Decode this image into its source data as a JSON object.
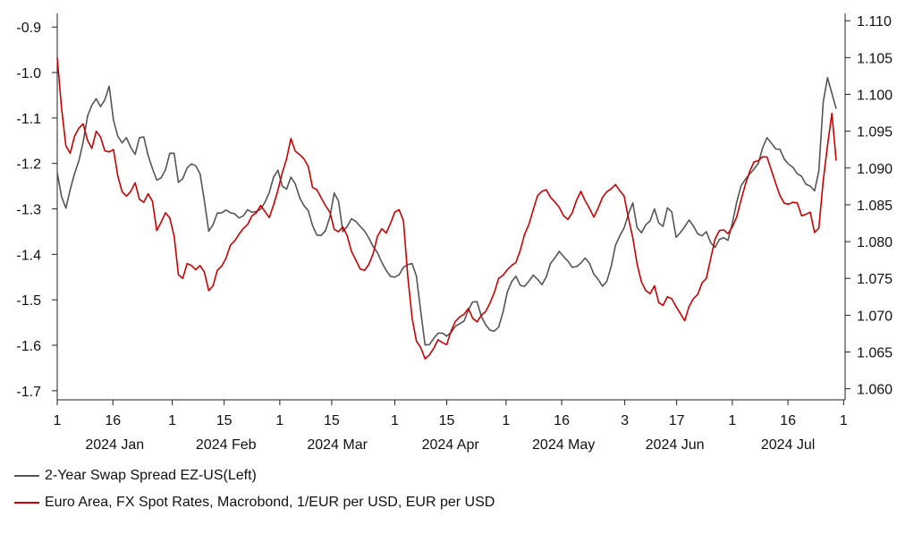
{
  "chart_data": {
    "type": "line",
    "title": "",
    "xlabel": "",
    "x_range": [
      0,
      210
    ],
    "x_ticks": [
      {
        "label": "1",
        "x": 0
      },
      {
        "label": "16",
        "x": 15
      },
      {
        "label": "1",
        "x": 31
      },
      {
        "label": "15",
        "x": 45
      },
      {
        "label": "1",
        "x": 60
      },
      {
        "label": "15",
        "x": 74
      },
      {
        "label": "1",
        "x": 91
      },
      {
        "label": "15",
        "x": 105
      },
      {
        "label": "1",
        "x": 121
      },
      {
        "label": "16",
        "x": 136
      },
      {
        "label": "3",
        "x": 153
      },
      {
        "label": "17",
        "x": 167
      },
      {
        "label": "1",
        "x": 182
      },
      {
        "label": "16",
        "x": 197
      },
      {
        "label": "1",
        "x": 212
      }
    ],
    "month_labels": [
      {
        "label": "2024 Jan",
        "x": 15.5
      },
      {
        "label": "2024 Feb",
        "x": 45.5
      },
      {
        "label": "2024 Mar",
        "x": 75.5
      },
      {
        "label": "2024 Apr",
        "x": 106
      },
      {
        "label": "2024 May",
        "x": 136.5
      },
      {
        "label": "2024 Jun",
        "x": 166.5
      },
      {
        "label": "2024 Jul",
        "x": 197
      }
    ],
    "y_left": {
      "range": [
        -1.72,
        -0.87
      ],
      "ticks": [
        -0.9,
        -1.0,
        -1.1,
        -1.2,
        -1.3,
        -1.4,
        -1.5,
        -1.6,
        -1.7
      ],
      "tick_labels": [
        "-0.9",
        "-1.0",
        "-1.1",
        "-1.2",
        "-1.3",
        "-1.4",
        "-1.5",
        "-1.6",
        "-1.7"
      ]
    },
    "y_right": {
      "range": [
        1.0585,
        1.111
      ],
      "ticks": [
        1.06,
        1.065,
        1.07,
        1.075,
        1.08,
        1.085,
        1.09,
        1.095,
        1.1,
        1.105,
        1.11
      ],
      "tick_labels": [
        "1.060",
        "1.065",
        "1.070",
        "1.075",
        "1.080",
        "1.085",
        "1.090",
        "1.095",
        "1.100",
        "1.105",
        "1.110"
      ]
    },
    "series": [
      {
        "name": "2-Year Swap Spread EZ-US(Left)",
        "axis": "left",
        "color": "#555555",
        "x": [
          0,
          2,
          4,
          6,
          8,
          10,
          12,
          14,
          15,
          17,
          19,
          21,
          23,
          25,
          27,
          29,
          31,
          33,
          35,
          37,
          39,
          41,
          43,
          45,
          47,
          49,
          51,
          53,
          55,
          57,
          59,
          61,
          63,
          65,
          67,
          69,
          71,
          73,
          75,
          77,
          79,
          81,
          83,
          85,
          87,
          89,
          91,
          93,
          95,
          97,
          99,
          101,
          103,
          105,
          107,
          109,
          111,
          113,
          115,
          117,
          119,
          121,
          123,
          125,
          127,
          129,
          131,
          133,
          135,
          137,
          139,
          141,
          143,
          145,
          147,
          149,
          151,
          153,
          155,
          157,
          159,
          161,
          163,
          165,
          167,
          169,
          171,
          173,
          175,
          177,
          179,
          181,
          183,
          185,
          187,
          189,
          191,
          193,
          195,
          197,
          199,
          201,
          203,
          205,
          207,
          209,
          210
        ],
        "values": [
          -1.22,
          -1.31,
          -1.24,
          -1.19,
          -1.1,
          -1.05,
          -1.08,
          -1.03,
          -1.1,
          -1.16,
          -1.14,
          -1.18,
          -1.13,
          -1.2,
          -1.24,
          -1.22,
          -1.15,
          -1.26,
          -1.21,
          -1.2,
          -1.23,
          -1.36,
          -1.31,
          -1.3,
          -1.31,
          -1.32,
          -1.3,
          -1.31,
          -1.3,
          -1.27,
          -1.2,
          -1.26,
          -1.23,
          -1.27,
          -1.3,
          -1.34,
          -1.36,
          -1.34,
          -1.25,
          -1.35,
          -1.32,
          -1.33,
          -1.35,
          -1.38,
          -1.41,
          -1.44,
          -1.45,
          -1.43,
          -1.42,
          -1.45,
          -1.6,
          -1.59,
          -1.57,
          -1.58,
          -1.56,
          -1.55,
          -1.52,
          -1.5,
          -1.55,
          -1.57,
          -1.56,
          -1.49,
          -1.45,
          -1.47,
          -1.46,
          -1.45,
          -1.47,
          -1.42,
          -1.39,
          -1.41,
          -1.43,
          -1.42,
          -1.41,
          -1.45,
          -1.47,
          -1.44,
          -1.36,
          -1.34,
          -1.28,
          -1.36,
          -1.33,
          -1.3,
          -1.35,
          -1.28,
          -1.37,
          -1.34,
          -1.33,
          -1.36,
          -1.35,
          -1.39,
          -1.36,
          -1.37,
          -1.29,
          -1.24,
          -1.22,
          -1.2,
          -1.14,
          -1.16,
          -1.17,
          -1.2,
          -1.22,
          -1.23,
          -1.25,
          -1.26,
          -1.0,
          -1.05,
          -1.08
        ],
        "observations": 180
      },
      {
        "name": "Euro Area, FX Spot Rates, Macrobond, 1/EUR per USD, EUR per USD",
        "axis": "right",
        "color": "#cc0000",
        "x": [
          0,
          1,
          2,
          3,
          5,
          7,
          9,
          11,
          13,
          15,
          17,
          19,
          21,
          23,
          25,
          27,
          29,
          31,
          33,
          35,
          37,
          39,
          41,
          43,
          45,
          47,
          49,
          51,
          53,
          55,
          57,
          59,
          61,
          63,
          65,
          67,
          69,
          71,
          73,
          75,
          77,
          79,
          81,
          83,
          85,
          87,
          89,
          91,
          93,
          95,
          97,
          99,
          101,
          103,
          105,
          107,
          109,
          111,
          113,
          115,
          117,
          119,
          121,
          123,
          125,
          127,
          129,
          131,
          133,
          135,
          137,
          139,
          141,
          143,
          145,
          147,
          149,
          151,
          153,
          155,
          157,
          159,
          161,
          163,
          165,
          167,
          169,
          171,
          173,
          175,
          177,
          179,
          181,
          183,
          185,
          187,
          189,
          191,
          193,
          195,
          197,
          199,
          201,
          203,
          205,
          207,
          209,
          210
        ],
        "values": [
          1.105,
          1.099,
          1.094,
          1.091,
          1.095,
          1.096,
          1.092,
          1.096,
          1.092,
          1.093,
          1.087,
          1.086,
          1.088,
          1.085,
          1.087,
          1.081,
          1.084,
          1.083,
          1.074,
          1.077,
          1.076,
          1.077,
          1.073,
          1.076,
          1.077,
          1.08,
          1.081,
          1.082,
          1.084,
          1.085,
          1.083,
          1.086,
          1.09,
          1.094,
          1.092,
          1.091,
          1.087,
          1.086,
          1.085,
          1.081,
          1.082,
          1.079,
          1.077,
          1.076,
          1.078,
          1.082,
          1.081,
          1.084,
          1.085,
          1.072,
          1.066,
          1.064,
          1.065,
          1.067,
          1.066,
          1.069,
          1.07,
          1.071,
          1.069,
          1.07,
          1.072,
          1.075,
          1.076,
          1.077,
          1.079,
          1.082,
          1.086,
          1.087,
          1.086,
          1.085,
          1.083,
          1.084,
          1.087,
          1.085,
          1.083,
          1.086,
          1.087,
          1.088,
          1.086,
          1.081,
          1.075,
          1.073,
          1.074,
          1.071,
          1.073,
          1.071,
          1.069,
          1.072,
          1.073,
          1.075,
          1.08,
          1.082,
          1.081,
          1.083,
          1.087,
          1.09,
          1.091,
          1.092,
          1.089,
          1.086,
          1.085,
          1.086,
          1.083,
          1.084,
          1.08,
          1.091,
          1.098,
          1.091
        ],
        "observations": 180
      }
    ]
  },
  "legend": {
    "swap_spread": "2-Year Swap Spread EZ-US(Left)",
    "fx_rate": "Euro Area, FX Spot Rates, Macrobond, 1/EUR per USD, EUR per USD",
    "swap_color": "#555555",
    "fx_color": "#cc0000"
  }
}
